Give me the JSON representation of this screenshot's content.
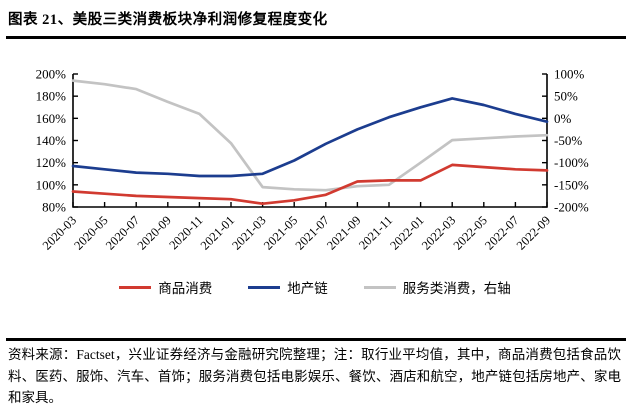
{
  "page": {
    "title": "图表 21、美股三类消费板块净利润修复程度变化",
    "source_note": "资料来源：Factset，兴业证券经济与金融研究院整理；注：取行业平均值，其中，商品消费包括食品饮料、医药、服饰、汽车、首饰；服务消费包括电影娱乐、餐饮、酒店和航空，地产链包括房地产、家电和家具。"
  },
  "chart_data": {
    "type": "line",
    "title": "美股三类消费板块净利润修复程度变化",
    "categories": [
      "2020-03",
      "2020-05",
      "2020-07",
      "2020-09",
      "2020-11",
      "2021-01",
      "2021-03",
      "2021-05",
      "2021-07",
      "2021-09",
      "2021-11",
      "2022-01",
      "2022-03",
      "2022-05",
      "2022-07",
      "2022-09"
    ],
    "series": [
      {
        "id": "goods",
        "name": "商品消费",
        "axis": "left",
        "color": "#d13a30",
        "values": [
          94,
          92,
          90,
          89,
          88,
          87,
          83,
          86,
          91,
          103,
          104,
          104,
          118,
          116,
          114,
          113
        ]
      },
      {
        "id": "property-chain",
        "name": "地产链",
        "axis": "left",
        "color": "#1c3d8f",
        "values": [
          117,
          114,
          111,
          110,
          108,
          108,
          110,
          122,
          137,
          150,
          161,
          170,
          178,
          172,
          164,
          157
        ]
      },
      {
        "id": "services",
        "name": "服务类消费，右轴",
        "axis": "right",
        "color": "#c3c3c3",
        "values": [
          85,
          77,
          66,
          37,
          10,
          -56,
          -155,
          -160,
          -162,
          -153,
          -150,
          -100,
          -49,
          -45,
          -41,
          -38
        ]
      }
    ],
    "left_axis": {
      "min": 80,
      "max": 200,
      "ticks": [
        200,
        180,
        160,
        140,
        120,
        100,
        80
      ],
      "unit": "%"
    },
    "right_axis": {
      "min": -200,
      "max": 100,
      "ticks": [
        100,
        50,
        0,
        -50,
        -100,
        -150,
        -200
      ],
      "unit": "%"
    },
    "legend_position": "bottom",
    "grid": false
  }
}
